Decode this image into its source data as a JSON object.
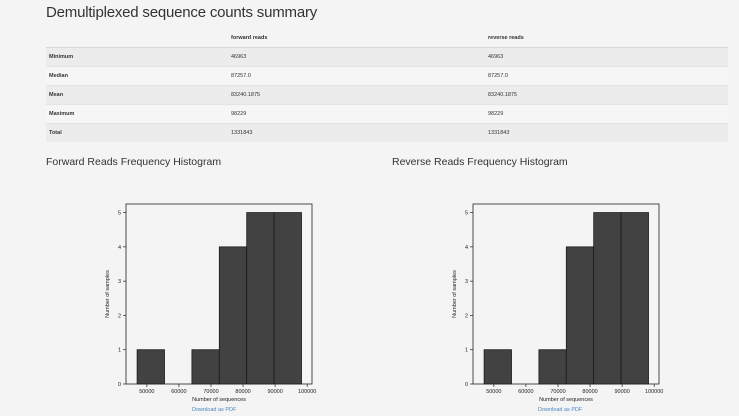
{
  "page": {
    "title": "Demultiplexed sequence counts summary"
  },
  "summary_table": {
    "headers": [
      "",
      "forward reads",
      "reverse reads"
    ],
    "rows": [
      {
        "label": "Minimum",
        "forward": "46963",
        "reverse": "46963"
      },
      {
        "label": "Median",
        "forward": "87257.0",
        "reverse": "87257.0"
      },
      {
        "label": "Mean",
        "forward": "83240.1875",
        "reverse": "83240.1875"
      },
      {
        "label": "Maximum",
        "forward": "98229",
        "reverse": "98229"
      },
      {
        "label": "Total",
        "forward": "1331843",
        "reverse": "1331843"
      }
    ]
  },
  "forward_histogram": {
    "heading": "Forward Reads Frequency Histogram",
    "download_label": "Download as PDF"
  },
  "reverse_histogram": {
    "heading": "Reverse Reads Frequency Histogram",
    "download_label": "Download as PDF"
  },
  "colors": {
    "bar_fill": "#424242",
    "bar_edge": "#1a1a1a",
    "link": "#4a86c5"
  },
  "chart_data": [
    {
      "type": "bar",
      "title": "",
      "xlabel": "Number of sequences",
      "ylabel": "Number of samples",
      "bin_edges": [
        46963,
        55507,
        64050,
        72594,
        81138,
        89682,
        98229
      ],
      "values": [
        1,
        0,
        1,
        4,
        5,
        5
      ],
      "xlim": [
        43500,
        101500
      ],
      "ylim": [
        0,
        5.25
      ],
      "x_ticks": [
        50000,
        60000,
        70000,
        80000,
        90000,
        100000
      ],
      "y_ticks": [
        0,
        1,
        2,
        3,
        4,
        5
      ],
      "grid": false
    },
    {
      "type": "bar",
      "title": "",
      "xlabel": "Number of sequences",
      "ylabel": "Number of samples",
      "bin_edges": [
        46963,
        55507,
        64050,
        72594,
        81138,
        89682,
        98229
      ],
      "values": [
        1,
        0,
        1,
        4,
        5,
        5
      ],
      "xlim": [
        43500,
        101500
      ],
      "ylim": [
        0,
        5.25
      ],
      "x_ticks": [
        50000,
        60000,
        70000,
        80000,
        90000,
        100000
      ],
      "y_ticks": [
        0,
        1,
        2,
        3,
        4,
        5
      ],
      "grid": false
    }
  ]
}
